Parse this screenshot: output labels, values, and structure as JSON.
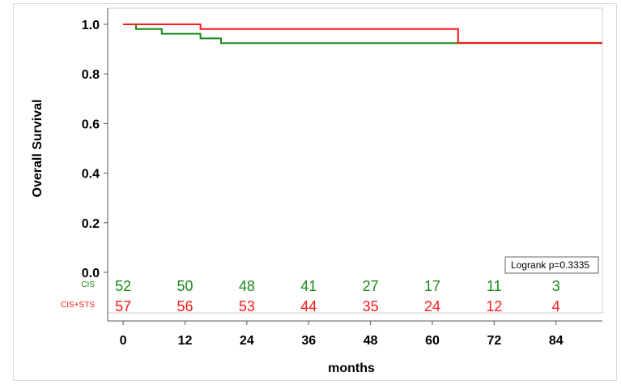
{
  "chart_data": {
    "type": "line",
    "title": "",
    "xlabel": "months",
    "ylabel": "Overall Survival",
    "x_ticks": [
      "0",
      "12",
      "24",
      "36",
      "48",
      "60",
      "72",
      "84"
    ],
    "y_ticks": [
      "0.0",
      "0.2",
      "0.4",
      "0.6",
      "0.8",
      "1.0"
    ],
    "xlim": [
      -3,
      93
    ],
    "ylim": [
      0,
      1.0
    ],
    "annotation": "Logrank p=0.3335",
    "series": [
      {
        "name": "CIS",
        "color": "#1a8a1a",
        "x": [
          0,
          2.5,
          2.5,
          7.5,
          7.5,
          15,
          15,
          19,
          19,
          93
        ],
        "y": [
          1.0,
          1.0,
          0.981,
          0.981,
          0.962,
          0.962,
          0.943,
          0.943,
          0.924,
          0.924
        ],
        "at_risk": [
          "52",
          "50",
          "48",
          "41",
          "27",
          "17",
          "11",
          "3"
        ]
      },
      {
        "name": "CIS+STS",
        "color": "#ff1a1a",
        "x": [
          0,
          15,
          15,
          65,
          65,
          93
        ],
        "y": [
          1.0,
          1.0,
          0.981,
          0.981,
          0.925,
          0.925
        ],
        "at_risk": [
          "57",
          "56",
          "53",
          "44",
          "35",
          "24",
          "12",
          "4"
        ]
      }
    ]
  }
}
